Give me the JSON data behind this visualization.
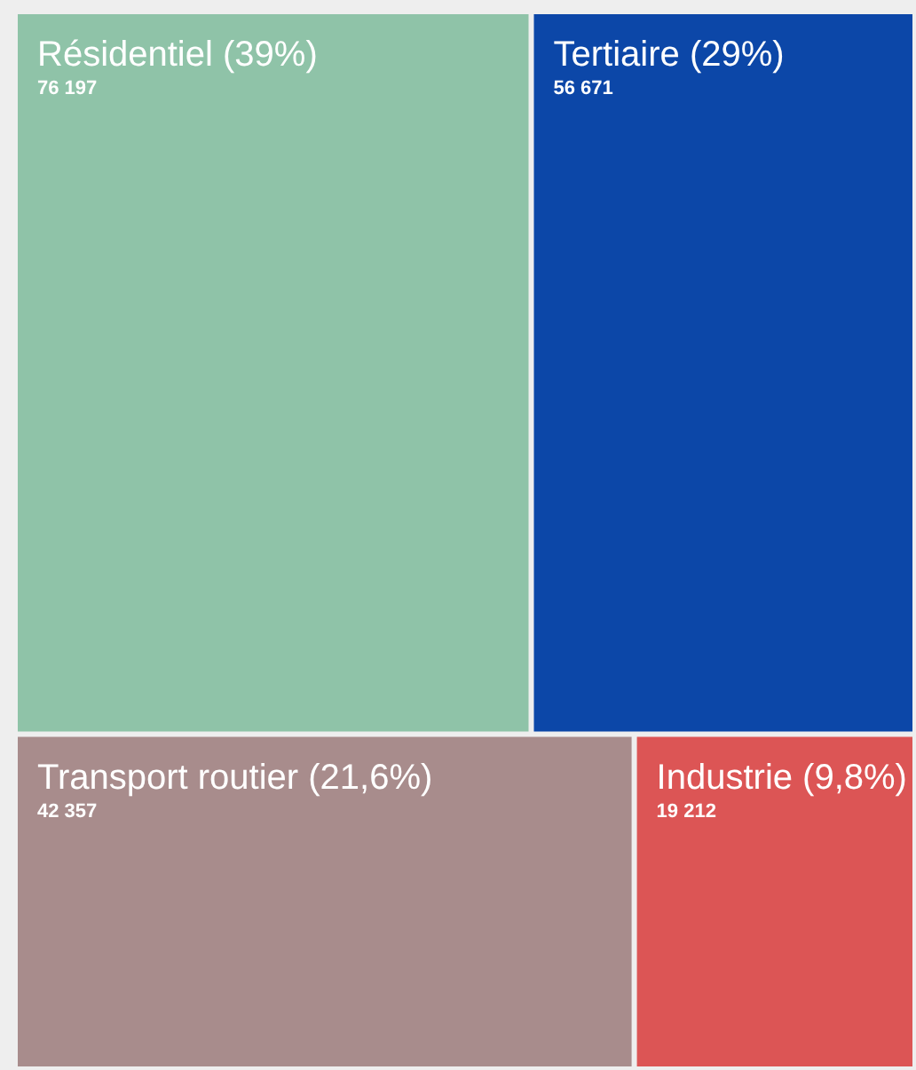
{
  "chart_data": {
    "type": "other",
    "categories": [
      "Résidentiel (39%)",
      "Tertiaire (29%)",
      "Transport routier (21,6%)",
      "Industrie (9,8%)"
    ],
    "values": [
      76197,
      56671,
      42357,
      19212
    ],
    "value_labels": [
      "76 197",
      "56 671",
      "42 357",
      "19 212"
    ],
    "colors": [
      "#8fc3a8",
      "#0c47a8",
      "#a88c8c",
      "#dc5555"
    ]
  }
}
